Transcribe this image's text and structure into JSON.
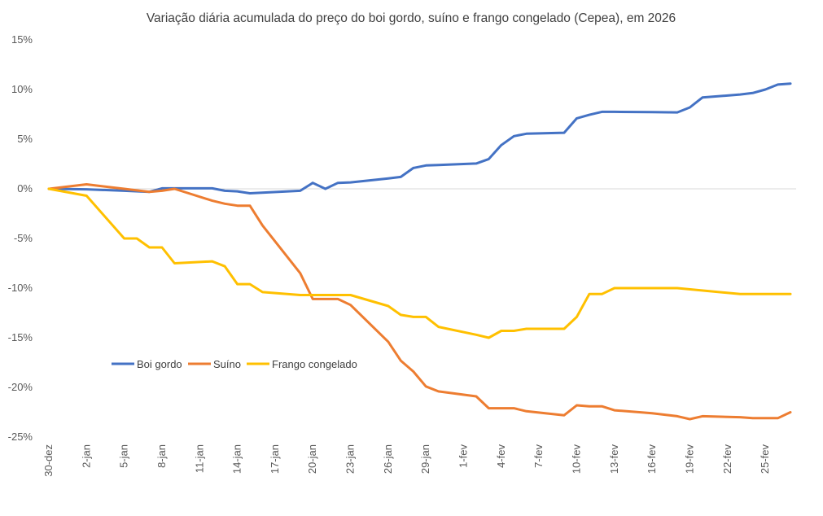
{
  "chart_data": {
    "type": "line",
    "title": "Variação diária acumulada do preço do boi gordo, suíno e frango congelado (Cepea), em 2026",
    "xlabel": "",
    "ylabel": "",
    "ylim": [
      -25,
      15
    ],
    "y_ticks": [
      "15%",
      "10%",
      "5%",
      "0%",
      "-5%",
      "-10%",
      "-15%",
      "-20%",
      "-25%"
    ],
    "y_tick_values": [
      15,
      10,
      5,
      0,
      -5,
      -10,
      -15,
      -20,
      -25
    ],
    "x_range": [
      "2025-12-30",
      "2026-02-27"
    ],
    "x_ticks": [
      "30-dez",
      "2-jan",
      "5-jan",
      "8-jan",
      "11-jan",
      "14-jan",
      "17-jan",
      "20-jan",
      "23-jan",
      "26-jan",
      "29-jan",
      "1-fev",
      "4-fev",
      "7-fev",
      "10-fev",
      "13-fev",
      "16-fev",
      "19-fev",
      "22-fev",
      "25-fev"
    ],
    "x_tick_dates": [
      "2025-12-30",
      "2026-01-02",
      "2026-01-05",
      "2026-01-08",
      "2026-01-11",
      "2026-01-14",
      "2026-01-17",
      "2026-01-20",
      "2026-01-23",
      "2026-01-26",
      "2026-01-29",
      "2026-02-01",
      "2026-02-04",
      "2026-02-07",
      "2026-02-10",
      "2026-02-13",
      "2026-02-16",
      "2026-02-19",
      "2026-02-22",
      "2026-02-25"
    ],
    "grid": "zero line only",
    "legend_placement": "lower-left inside plot",
    "series": [
      {
        "name": "Boi gordo",
        "color": "#4472C4",
        "points": [
          [
            "2025-12-30",
            0
          ],
          [
            "2026-01-02",
            -0.05
          ],
          [
            "2026-01-05",
            -0.2
          ],
          [
            "2026-01-07",
            -0.3
          ],
          [
            "2026-01-08",
            0.05
          ],
          [
            "2026-01-09",
            0.05
          ],
          [
            "2026-01-12",
            0.05
          ],
          [
            "2026-01-13",
            -0.2
          ],
          [
            "2026-01-14",
            -0.25
          ],
          [
            "2026-01-15",
            -0.45
          ],
          [
            "2026-01-19",
            -0.2
          ],
          [
            "2026-01-20",
            0.6
          ],
          [
            "2026-01-21",
            0
          ],
          [
            "2026-01-22",
            0.6
          ],
          [
            "2026-01-23",
            0.65
          ],
          [
            "2026-01-26",
            1.05
          ],
          [
            "2026-01-27",
            1.2
          ],
          [
            "2026-01-28",
            2.1
          ],
          [
            "2026-01-29",
            2.35
          ],
          [
            "2026-01-30",
            2.4
          ],
          [
            "2026-02-02",
            2.55
          ],
          [
            "2026-02-03",
            3.0
          ],
          [
            "2026-02-04",
            4.4
          ],
          [
            "2026-02-05",
            5.3
          ],
          [
            "2026-02-06",
            5.55
          ],
          [
            "2026-02-09",
            5.65
          ],
          [
            "2026-02-10",
            7.1
          ],
          [
            "2026-02-11",
            7.45
          ],
          [
            "2026-02-12",
            7.75
          ],
          [
            "2026-02-13",
            7.75
          ],
          [
            "2026-02-16",
            7.72
          ],
          [
            "2026-02-18",
            7.7
          ],
          [
            "2026-02-19",
            8.2
          ],
          [
            "2026-02-20",
            9.2
          ],
          [
            "2026-02-23",
            9.5
          ],
          [
            "2026-02-24",
            9.65
          ],
          [
            "2026-02-25",
            10.0
          ],
          [
            "2026-02-26",
            10.5
          ],
          [
            "2026-02-27",
            10.6
          ]
        ]
      },
      {
        "name": "Suíno",
        "color": "#ED7D31",
        "points": [
          [
            "2025-12-30",
            0
          ],
          [
            "2026-01-02",
            0.45
          ],
          [
            "2026-01-05",
            0
          ],
          [
            "2026-01-07",
            -0.3
          ],
          [
            "2026-01-08",
            -0.2
          ],
          [
            "2026-01-09",
            0
          ],
          [
            "2026-01-12",
            -1.2
          ],
          [
            "2026-01-13",
            -1.5
          ],
          [
            "2026-01-14",
            -1.7
          ],
          [
            "2026-01-15",
            -1.7
          ],
          [
            "2026-01-16",
            -3.7
          ],
          [
            "2026-01-19",
            -8.5
          ],
          [
            "2026-01-20",
            -11.1
          ],
          [
            "2026-01-21",
            -11.1
          ],
          [
            "2026-01-22",
            -11.1
          ],
          [
            "2026-01-23",
            -11.7
          ],
          [
            "2026-01-26",
            -15.4
          ],
          [
            "2026-01-27",
            -17.3
          ],
          [
            "2026-01-28",
            -18.4
          ],
          [
            "2026-01-29",
            -19.9
          ],
          [
            "2026-01-30",
            -20.4
          ],
          [
            "2026-02-02",
            -20.9
          ],
          [
            "2026-02-03",
            -22.1
          ],
          [
            "2026-02-04",
            -22.1
          ],
          [
            "2026-02-05",
            -22.1
          ],
          [
            "2026-02-06",
            -22.4
          ],
          [
            "2026-02-09",
            -22.8
          ],
          [
            "2026-02-10",
            -21.8
          ],
          [
            "2026-02-11",
            -21.9
          ],
          [
            "2026-02-12",
            -21.9
          ],
          [
            "2026-02-13",
            -22.3
          ],
          [
            "2026-02-16",
            -22.6
          ],
          [
            "2026-02-18",
            -22.9
          ],
          [
            "2026-02-19",
            -23.2
          ],
          [
            "2026-02-20",
            -22.9
          ],
          [
            "2026-02-23",
            -23.0
          ],
          [
            "2026-02-24",
            -23.1
          ],
          [
            "2026-02-25",
            -23.1
          ],
          [
            "2026-02-26",
            -23.1
          ],
          [
            "2026-02-27",
            -22.5
          ]
        ]
      },
      {
        "name": "Frango congelado",
        "color": "#FFC000",
        "points": [
          [
            "2025-12-30",
            0
          ],
          [
            "2026-01-02",
            -0.7
          ],
          [
            "2026-01-05",
            -5.0
          ],
          [
            "2026-01-06",
            -5.0
          ],
          [
            "2026-01-07",
            -5.9
          ],
          [
            "2026-01-08",
            -5.9
          ],
          [
            "2026-01-09",
            -7.5
          ],
          [
            "2026-01-12",
            -7.3
          ],
          [
            "2026-01-13",
            -7.8
          ],
          [
            "2026-01-14",
            -9.6
          ],
          [
            "2026-01-15",
            -9.6
          ],
          [
            "2026-01-16",
            -10.4
          ],
          [
            "2026-01-19",
            -10.7
          ],
          [
            "2026-01-20",
            -10.7
          ],
          [
            "2026-01-21",
            -10.7
          ],
          [
            "2026-01-22",
            -10.7
          ],
          [
            "2026-01-23",
            -10.7
          ],
          [
            "2026-01-26",
            -11.8
          ],
          [
            "2026-01-27",
            -12.7
          ],
          [
            "2026-01-28",
            -12.9
          ],
          [
            "2026-01-29",
            -12.9
          ],
          [
            "2026-01-30",
            -13.9
          ],
          [
            "2026-02-02",
            -14.7
          ],
          [
            "2026-02-03",
            -15.0
          ],
          [
            "2026-02-04",
            -14.3
          ],
          [
            "2026-02-05",
            -14.3
          ],
          [
            "2026-02-06",
            -14.1
          ],
          [
            "2026-02-09",
            -14.1
          ],
          [
            "2026-02-10",
            -12.9
          ],
          [
            "2026-02-11",
            -10.6
          ],
          [
            "2026-02-12",
            -10.6
          ],
          [
            "2026-02-13",
            -10.0
          ],
          [
            "2026-02-16",
            -10.0
          ],
          [
            "2026-02-18",
            -10.0
          ],
          [
            "2026-02-23",
            -10.6
          ],
          [
            "2026-02-24",
            -10.6
          ],
          [
            "2026-02-27",
            -10.6
          ]
        ]
      }
    ]
  }
}
